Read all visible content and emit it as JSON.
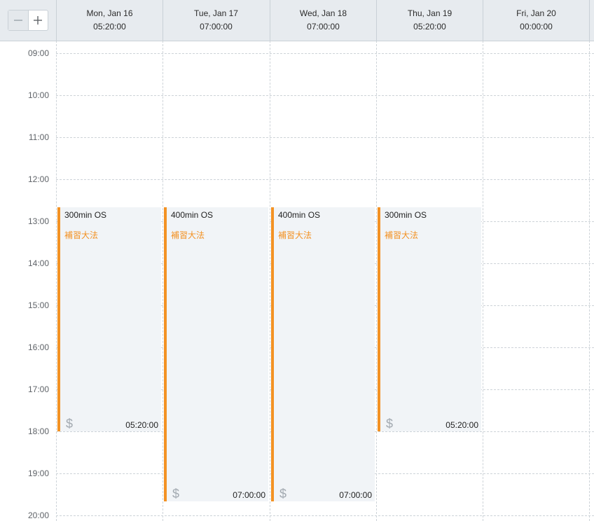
{
  "toolbar": {
    "zoom_out_icon": "minus-icon",
    "zoom_in_icon": "plus-icon"
  },
  "days": [
    {
      "label": "Mon, Jan 16",
      "total": "05:20:00"
    },
    {
      "label": "Tue, Jan 17",
      "total": "07:00:00"
    },
    {
      "label": "Wed, Jan 18",
      "total": "07:00:00"
    },
    {
      "label": "Thu, Jan 19",
      "total": "05:20:00"
    },
    {
      "label": "Fri, Jan 20",
      "total": "00:00:00"
    }
  ],
  "hours": [
    "09:00",
    "10:00",
    "11:00",
    "12:00",
    "13:00",
    "14:00",
    "15:00",
    "16:00",
    "17:00",
    "18:00",
    "19:00",
    "20:00"
  ],
  "events": [
    {
      "title": "300min OS",
      "subtitle": "補習大法",
      "icon": "dollar-icon",
      "duration": "05:20:00",
      "color": "#f39224"
    },
    {
      "title": "400min OS",
      "subtitle": "補習大法",
      "icon": "dollar-icon",
      "duration": "07:00:00",
      "color": "#f39224"
    },
    {
      "title": "400min OS",
      "subtitle": "補習大法",
      "icon": "dollar-icon",
      "duration": "07:00:00",
      "color": "#f39224"
    },
    {
      "title": "300min OS",
      "subtitle": "補習大法",
      "icon": "dollar-icon",
      "duration": "05:20:00",
      "color": "#f39224"
    }
  ]
}
